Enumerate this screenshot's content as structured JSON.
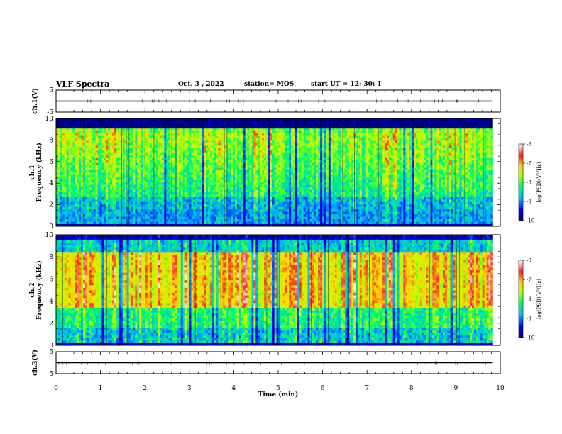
{
  "header": {
    "title": "VLF Spectra",
    "date": "Oct. 3 , 2022",
    "station": "station= MOS",
    "start": "start UT = 12: 30: 1"
  },
  "chart_data": [
    {
      "type": "line",
      "ylabel": "ch.1(V)",
      "yticks": [
        "5",
        "-5"
      ],
      "ylim": [
        -5,
        5
      ],
      "x": [
        0,
        9.83
      ],
      "values": [
        0,
        0
      ]
    },
    {
      "type": "heatmap",
      "ylabel": "ch.1",
      "ylabel2": "Frequency (kHz)",
      "ylim": [
        0,
        10
      ],
      "yticks": [
        "0",
        "2",
        "4",
        "6",
        "8",
        "10"
      ],
      "xlim": [
        0,
        10
      ],
      "colorbar": {
        "label": "log(PSD)(V²/Hz)",
        "ticks": [
          "-6",
          "-7",
          "-8",
          "-9",
          "-10"
        ],
        "range": [
          -10,
          -6
        ]
      }
    },
    {
      "type": "heatmap",
      "ylabel": "ch.2",
      "ylabel2": "Frequency (kHz)",
      "ylim": [
        0,
        10
      ],
      "yticks": [
        "0",
        "2",
        "4",
        "6",
        "8",
        "10"
      ],
      "xlim": [
        0,
        10
      ],
      "colorbar": {
        "label": "log(PSD)(V²/Hz)",
        "ticks": [
          "-6",
          "-7",
          "-8",
          "-9",
          "-10"
        ],
        "range": [
          -10,
          -6
        ]
      }
    },
    {
      "type": "line",
      "ylabel": "ch.3(V)",
      "yticks": [
        "5",
        "-5"
      ],
      "ylim": [
        -5,
        5
      ],
      "x": [
        0,
        9.83
      ],
      "values": [
        0,
        0
      ]
    }
  ],
  "xaxis": {
    "label": "Time (min)",
    "ticks": [
      "0",
      "1",
      "2",
      "3",
      "4",
      "5",
      "6",
      "7",
      "8",
      "9",
      "10"
    ],
    "xlim": [
      0,
      10
    ]
  }
}
